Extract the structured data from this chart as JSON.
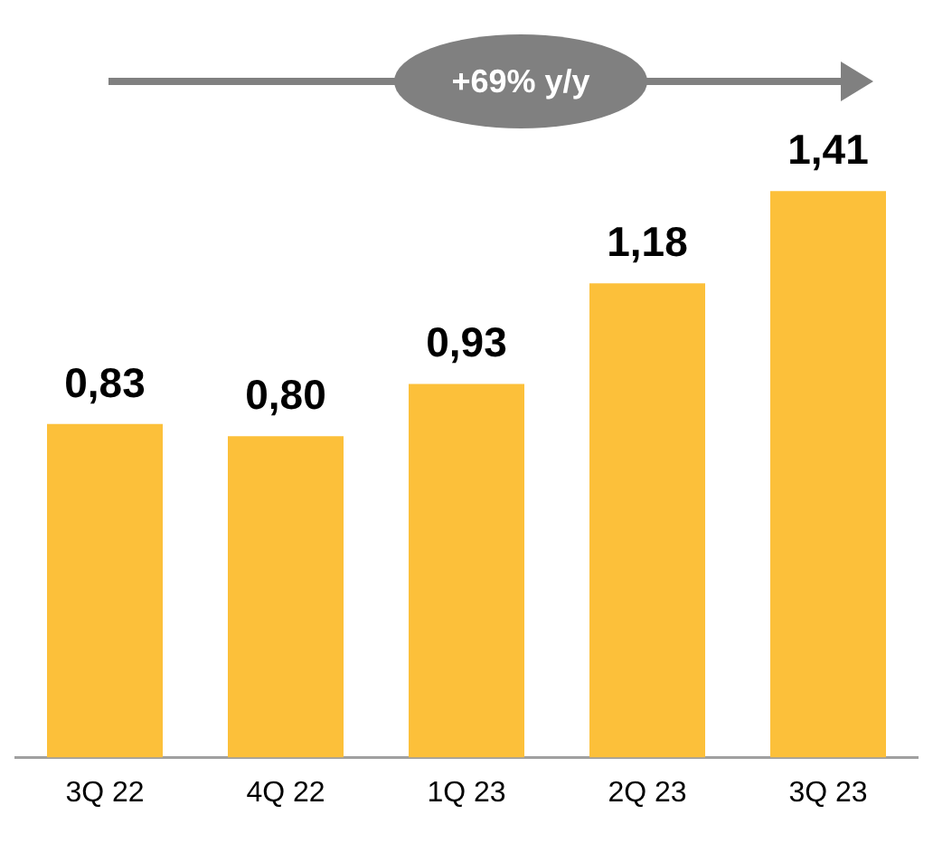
{
  "chart_data": {
    "type": "bar",
    "categories": [
      "3Q 22",
      "4Q 22",
      "1Q 23",
      "2Q 23",
      "3Q 23"
    ],
    "values": [
      0.83,
      0.8,
      0.93,
      1.18,
      1.41
    ],
    "value_labels": [
      "0,83",
      "0,80",
      "0,93",
      "1,18",
      "1,41"
    ],
    "color": "#fcc03a",
    "annotations": [
      "+69% y/y"
    ],
    "grid": false,
    "legend": false
  }
}
